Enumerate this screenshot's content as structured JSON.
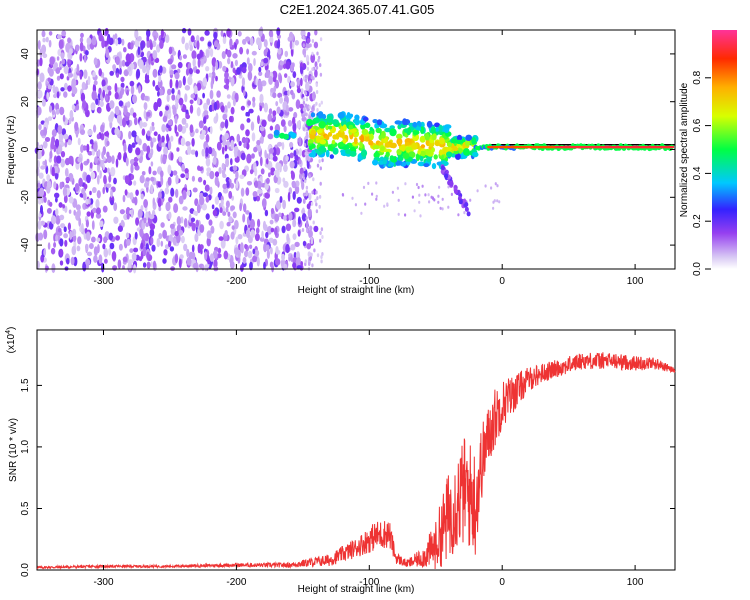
{
  "figure": {
    "title": "C2E1.2024.365.07.41.G05"
  },
  "chart_data": [
    {
      "type": "heatmap",
      "title": "C2E1.2024.365.07.41.G05",
      "xlabel": "Height of straight line (km)",
      "ylabel": "Frequency (Hz)",
      "xlim": [
        -350,
        130
      ],
      "ylim": [
        -50,
        50
      ],
      "xticks": [
        -300,
        -200,
        -100,
        0,
        100
      ],
      "yticks": [
        -40,
        -20,
        0,
        20,
        40
      ],
      "colorbar": {
        "label": "Normalized spectral amplitude",
        "range": [
          0,
          1
        ],
        "ticks": [
          "0.0",
          "0.2",
          "0.4",
          "0.6",
          "0.8"
        ],
        "tick_values": [
          0,
          0.2,
          0.4,
          0.6,
          0.8
        ]
      },
      "regions": [
        {
          "name": "noise",
          "x": [
            -350,
            -140
          ],
          "freq": [
            -50,
            50
          ],
          "amplitude": 0.15
        },
        {
          "name": "onset",
          "x": [
            -170,
            -150
          ],
          "freq": [
            3,
            8
          ],
          "amplitude": 0.45
        },
        {
          "name": "signal-track",
          "x": [
            -140,
            130
          ],
          "freq_center": [
            8,
            0
          ],
          "amplitude": 0.9
        }
      ]
    },
    {
      "type": "line",
      "xlabel": "Height of straight line (km)",
      "ylabel": "SNR (10 * v/v)",
      "y_multiplier": "(x10",
      "y_multiplier_exp": "4",
      "y_multiplier_close": ")",
      "xlim": [
        -350,
        130
      ],
      "ylim": [
        0,
        1.95
      ],
      "xticks": [
        -300,
        -200,
        -100,
        0,
        100
      ],
      "yticks": [
        0.0,
        0.5,
        1.0,
        1.5
      ],
      "ytick_labels": [
        "0.0",
        "0.5",
        "1.0",
        "1.5"
      ],
      "series_color": "#ee3333",
      "envelope": {
        "x": [
          -350,
          -300,
          -250,
          -200,
          -160,
          -130,
          -110,
          -95,
          -85,
          -80,
          -72,
          -60,
          -50,
          -42,
          -35,
          -28,
          -20,
          -15,
          -10,
          -5,
          0,
          10,
          20,
          30,
          45,
          60,
          80,
          100,
          115,
          130
        ],
        "mean": [
          0.02,
          0.03,
          0.03,
          0.04,
          0.04,
          0.08,
          0.18,
          0.28,
          0.3,
          0.1,
          0.05,
          0.1,
          0.2,
          0.4,
          0.55,
          0.65,
          0.55,
          0.9,
          1.1,
          1.25,
          1.35,
          1.45,
          1.55,
          1.6,
          1.65,
          1.7,
          1.7,
          1.68,
          1.68,
          1.62
        ],
        "spread": [
          0.01,
          0.01,
          0.01,
          0.015,
          0.02,
          0.05,
          0.08,
          0.12,
          0.12,
          0.05,
          0.03,
          0.08,
          0.2,
          0.35,
          0.4,
          0.45,
          0.45,
          0.3,
          0.25,
          0.25,
          0.2,
          0.15,
          0.1,
          0.08,
          0.07,
          0.07,
          0.07,
          0.06,
          0.05,
          0.02
        ]
      }
    }
  ]
}
